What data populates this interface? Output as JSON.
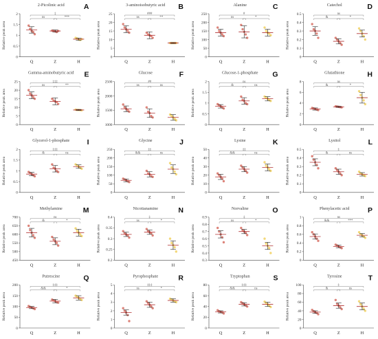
{
  "chart_data": [
    {
      "letter": "A",
      "title": "2-Picolinic acid",
      "type": "scatter",
      "ylabel": "Relative peak area",
      "categories": [
        "Q",
        "Z",
        "H"
      ],
      "ylim": [
        0,
        2
      ],
      "yticks": [
        0,
        0.5,
        1,
        1.5,
        2
      ],
      "mean": [
        1.25,
        1.2,
        0.82
      ],
      "sd": [
        0.15,
        0.05,
        0.05
      ],
      "points": [
        [
          1.45,
          1.3,
          1.2,
          1.15,
          1.05
        ],
        [
          1.22,
          1.2,
          1.18,
          1.15,
          1.2
        ],
        [
          0.88,
          0.85,
          0.8,
          0.78,
          0.82
        ]
      ],
      "color": "#d9776b",
      "sig_long": "‡",
      "sig_left": "ns",
      "sig_right": "***"
    },
    {
      "letter": "B",
      "title": "3-aminoisobutyric acid",
      "type": "scatter",
      "ylabel": "Relative peak area",
      "categories": [
        "Q",
        "Z",
        "H"
      ],
      "ylim": [
        0,
        25
      ],
      "yticks": [
        0,
        5,
        10,
        15,
        20,
        25
      ],
      "mean": [
        16,
        12.5,
        8
      ],
      "sd": [
        2,
        2,
        0.3
      ],
      "points": [
        [
          19,
          17,
          16,
          15,
          14
        ],
        [
          14,
          13,
          12.5,
          12,
          11
        ],
        [
          8,
          8,
          8,
          8,
          8
        ]
      ],
      "color": "#d9776b",
      "sig_long": "###",
      "sig_left": "ns",
      "sig_right": "**"
    },
    {
      "letter": "C",
      "title": "Alanine",
      "type": "scatter",
      "ylabel": "Relative peak area",
      "categories": [
        "Q",
        "Z",
        "H"
      ],
      "ylim": [
        0,
        250
      ],
      "yticks": [
        0,
        50,
        100,
        150,
        200,
        250
      ],
      "mean": [
        140,
        145,
        140
      ],
      "sd": [
        20,
        35,
        20
      ],
      "points": [
        [
          170,
          150,
          140,
          130,
          120
        ],
        [
          185,
          160,
          145,
          130,
          110
        ],
        [
          170,
          150,
          140,
          135,
          125
        ]
      ],
      "color": "#d9776b",
      "sig_long": "#",
      "sig_left": "ns",
      "sig_right": "*"
    },
    {
      "letter": "D",
      "title": "Catechol",
      "type": "scatter",
      "ylabel": "Relative peak area",
      "categories": [
        "Q",
        "Z",
        "H"
      ],
      "ylim": [
        0,
        0.5
      ],
      "yticks": [
        0,
        0.1,
        0.2,
        0.3,
        0.4,
        0.5
      ],
      "mean": [
        0.3,
        0.18,
        0.27
      ],
      "sd": [
        0.05,
        0.03,
        0.04
      ],
      "points": [
        [
          0.38,
          0.32,
          0.3,
          0.27,
          0.22
        ],
        [
          0.22,
          0.2,
          0.18,
          0.16,
          0.14
        ],
        [
          0.33,
          0.3,
          0.27,
          0.24,
          0.2
        ]
      ],
      "color": "#d9776b",
      "sig_long": "ns",
      "sig_left": "&",
      "sig_right": "*"
    },
    {
      "letter": "E",
      "title": "Gamma-aminobutyric acid",
      "type": "scatter",
      "ylabel": "Relative peak area",
      "categories": [
        "Q",
        "Z",
        "H"
      ],
      "ylim": [
        0,
        25
      ],
      "yticks": [
        0,
        5,
        10,
        15,
        20,
        25
      ],
      "mean": [
        17,
        13.5,
        8.5
      ],
      "sd": [
        2,
        2,
        0.3
      ],
      "points": [
        [
          20,
          18,
          17,
          16,
          15
        ],
        [
          15,
          14,
          13.5,
          13,
          12
        ],
        [
          8.7,
          8.5,
          8.5,
          8.4,
          8.3
        ]
      ],
      "color": "#d9776b",
      "sig_long": "‡‡‡",
      "sig_left": "ns",
      "sig_right": "**"
    },
    {
      "letter": "F",
      "title": "Glucose",
      "type": "scatter",
      "ylabel": "Relative peak area",
      "categories": [
        "Q",
        "Z",
        "H"
      ],
      "ylim": [
        1000,
        2500
      ],
      "yticks": [
        1000,
        1500,
        2000,
        2500
      ],
      "mean": [
        1550,
        1400,
        1250
      ],
      "sd": [
        100,
        150,
        100
      ],
      "points": [
        [
          1700,
          1600,
          1550,
          1500,
          1450
        ],
        [
          1600,
          1450,
          1400,
          1300,
          1250
        ],
        [
          1350,
          1300,
          1250,
          1200,
          1150
        ]
      ],
      "color": "#d9776b",
      "sig_long": "##",
      "sig_left": "ns",
      "sig_right": "ns"
    },
    {
      "letter": "G",
      "title": "Glucose-1-phosphate",
      "type": "scatter",
      "ylabel": "Relative peak area",
      "categories": [
        "Q",
        "Z",
        "H"
      ],
      "ylim": [
        0,
        2
      ],
      "yticks": [
        0,
        0.5,
        1,
        1.5,
        2
      ],
      "mean": [
        0.85,
        1.1,
        1.2
      ],
      "sd": [
        0.08,
        0.15,
        0.1
      ],
      "points": [
        [
          0.95,
          0.9,
          0.85,
          0.8,
          0.75
        ],
        [
          1.3,
          1.15,
          1.1,
          1.0,
          0.95
        ],
        [
          1.3,
          1.25,
          1.2,
          1.15,
          1.1
        ]
      ],
      "color": "#d9776b",
      "sig_long": "ns",
      "sig_left": "&",
      "sig_right": "ns"
    },
    {
      "letter": "H",
      "title": "Glutathione",
      "type": "scatter",
      "ylabel": "Relative peak area",
      "categories": [
        "Q",
        "Z",
        "H"
      ],
      "ylim": [
        0,
        8
      ],
      "yticks": [
        0,
        2,
        4,
        6,
        8
      ],
      "mean": [
        2.9,
        3.3,
        5
      ],
      "sd": [
        0.2,
        0.1,
        1
      ],
      "points": [
        [
          3.1,
          3.0,
          2.9,
          2.8,
          2.7
        ],
        [
          3.4,
          3.35,
          3.3,
          3.25,
          3.2
        ],
        [
          6.2,
          5.5,
          5.0,
          4.5,
          3.8
        ]
      ],
      "color": "#d9776b",
      "sig_long": "ns",
      "sig_left": "&",
      "sig_right": "*"
    },
    {
      "letter": "I",
      "title": "Glycerol-1-phosphate",
      "type": "scatter",
      "ylabel": "Relative peak area",
      "categories": [
        "Q",
        "Z",
        "H"
      ],
      "ylim": [
        0,
        2
      ],
      "yticks": [
        0,
        0.5,
        1,
        1.5,
        2
      ],
      "mean": [
        0.85,
        1.1,
        1.2
      ],
      "sd": [
        0.08,
        0.15,
        0.08
      ],
      "points": [
        [
          0.95,
          0.9,
          0.85,
          0.8,
          0.75
        ],
        [
          1.3,
          1.15,
          1.1,
          1.0,
          0.95
        ],
        [
          1.3,
          1.25,
          1.2,
          1.15,
          1.1
        ]
      ],
      "color": "#d9776b",
      "sig_long": "‡‡‡",
      "sig_left": "&",
      "sig_right": "ns"
    },
    {
      "letter": "J",
      "title": "Glycine",
      "type": "scatter",
      "ylabel": "Relative peak area",
      "categories": [
        "Q",
        "Z",
        "H"
      ],
      "ylim": [
        0,
        250
      ],
      "yticks": [
        0,
        50,
        100,
        150,
        200,
        250
      ],
      "mean": [
        70,
        105,
        135
      ],
      "sd": [
        8,
        15,
        25
      ],
      "points": [
        [
          80,
          75,
          70,
          65,
          60
        ],
        [
          125,
          110,
          105,
          95,
          90
        ],
        [
          170,
          145,
          135,
          120,
          105
        ]
      ],
      "color": "#d9776b",
      "sig_long": "‡‡",
      "sig_left": "&&",
      "sig_right": "ns"
    },
    {
      "letter": "K",
      "title": "Lysine",
      "type": "scatter",
      "ylabel": "Relative peak area",
      "categories": [
        "Q",
        "Z",
        "H"
      ],
      "ylim": [
        0,
        50
      ],
      "yticks": [
        0,
        10,
        20,
        30,
        40,
        50
      ],
      "mean": [
        18,
        27,
        29
      ],
      "sd": [
        3,
        3,
        4
      ],
      "points": [
        [
          22,
          20,
          18,
          16,
          13
        ],
        [
          31,
          29,
          27,
          25,
          23
        ],
        [
          35,
          31,
          29,
          27,
          25
        ]
      ],
      "color": "#d9776b",
      "sig_long": "‡‡",
      "sig_left": "&&",
      "sig_right": "ns"
    },
    {
      "letter": "L",
      "title": "Lysitol",
      "type": "scatter",
      "ylabel": "Relative peak area",
      "categories": [
        "Q",
        "Z",
        "H"
      ],
      "ylim": [
        0,
        0.5
      ],
      "yticks": [
        0,
        0.1,
        0.2,
        0.3,
        0.4,
        0.5
      ],
      "mean": [
        0.35,
        0.24,
        0.21
      ],
      "sd": [
        0.04,
        0.03,
        0.02
      ],
      "points": [
        [
          0.42,
          0.38,
          0.35,
          0.32,
          0.28
        ],
        [
          0.28,
          0.26,
          0.24,
          0.22,
          0.2
        ],
        [
          0.24,
          0.22,
          0.21,
          0.2,
          0.19
        ]
      ],
      "color": "#d9776b",
      "sig_long": "‡",
      "sig_left": "&",
      "sig_right": "ns"
    },
    {
      "letter": "M",
      "title": "Methylamine",
      "type": "scatter",
      "ylabel": "Relative peak area",
      "categories": [
        "Q",
        "Z",
        "H"
      ],
      "ylim": [
        450,
        700
      ],
      "yticks": [
        450,
        500,
        550,
        600,
        650,
        700
      ],
      "mean": [
        610,
        560,
        610
      ],
      "sd": [
        25,
        20,
        20
      ],
      "points": [
        [
          650,
          625,
          610,
          595,
          580
        ],
        [
          585,
          570,
          560,
          550,
          535
        ],
        [
          635,
          620,
          610,
          600,
          590
        ]
      ],
      "color": "#d9776b",
      "sig_long": "ns",
      "sig_left": "&",
      "sig_right": "*"
    },
    {
      "letter": "N",
      "title": "Nicotianamine",
      "type": "scatter",
      "ylabel": "Relative peak area",
      "categories": [
        "Q",
        "Z",
        "H"
      ],
      "ylim": [
        0.2,
        0.4
      ],
      "yticks": [
        0.2,
        0.25,
        0.3,
        0.35,
        0.4
      ],
      "mean": [
        0.32,
        0.33,
        0.27
      ],
      "sd": [
        0.01,
        0.01,
        0.02
      ],
      "points": [
        [
          0.335,
          0.325,
          0.32,
          0.315,
          0.305
        ],
        [
          0.345,
          0.335,
          0.33,
          0.325,
          0.315
        ],
        [
          0.3,
          0.28,
          0.27,
          0.26,
          0.24
        ]
      ],
      "color": "#d9776b",
      "sig_long": "‡",
      "sig_left": "ns",
      "sig_right": "*"
    },
    {
      "letter": "O",
      "title": "Norvaline",
      "type": "scatter",
      "ylabel": "Relative peak area",
      "categories": [
        "Q",
        "Z",
        "H"
      ],
      "ylim": [
        0.3,
        0.9
      ],
      "yticks": [
        0.3,
        0.4,
        0.5,
        0.6,
        0.7,
        0.8,
        0.9
      ],
      "mean": [
        0.66,
        0.7,
        0.5
      ],
      "sd": [
        0.05,
        0.03,
        0.05
      ],
      "points": [
        [
          0.75,
          0.7,
          0.66,
          0.62,
          0.55
        ],
        [
          0.75,
          0.72,
          0.7,
          0.68,
          0.65
        ],
        [
          0.6,
          0.53,
          0.5,
          0.47,
          0.4
        ]
      ],
      "color": "#d9776b",
      "sig_long": "‡",
      "sig_left": "ns",
      "sig_right": "*"
    },
    {
      "letter": "P",
      "title": "Phenylacetic acid",
      "type": "scatter",
      "ylabel": "Relative peak area",
      "categories": [
        "Q",
        "Z",
        "H"
      ],
      "ylim": [
        0,
        1
      ],
      "yticks": [
        0,
        0.2,
        0.4,
        0.6,
        0.8,
        1
      ],
      "mean": [
        0.55,
        0.32,
        0.58
      ],
      "sd": [
        0.06,
        0.03,
        0.04
      ],
      "points": [
        [
          0.65,
          0.6,
          0.55,
          0.5,
          0.45
        ],
        [
          0.36,
          0.34,
          0.32,
          0.3,
          0.28
        ],
        [
          0.65,
          0.6,
          0.58,
          0.55,
          0.52
        ]
      ],
      "color": "#d9776b",
      "sig_long": "ns",
      "sig_left": "&&",
      "sig_right": "***"
    },
    {
      "letter": "Q",
      "title": "Putrescine",
      "type": "scatter",
      "ylabel": "Relative peak area",
      "categories": [
        "Q",
        "Z",
        "H"
      ],
      "ylim": [
        0,
        200
      ],
      "yticks": [
        0,
        50,
        100,
        150,
        200
      ],
      "mean": [
        95,
        125,
        140
      ],
      "sd": [
        5,
        8,
        10
      ],
      "points": [
        [
          102,
          98,
          95,
          92,
          88
        ],
        [
          132,
          128,
          125,
          120,
          118
        ],
        [
          150,
          145,
          140,
          135,
          130
        ]
      ],
      "color": "#d9776b",
      "sig_long": "‡‡‡",
      "sig_left": "&&",
      "sig_right": "*"
    },
    {
      "letter": "R",
      "title": "Pyrophosphate",
      "type": "scatter",
      "ylabel": "Relative peak area",
      "categories": [
        "Q",
        "Z",
        "H"
      ],
      "ylim": [
        0,
        5
      ],
      "yticks": [
        0,
        1,
        2,
        3,
        4,
        5
      ],
      "mean": [
        1.8,
        2.7,
        3.2
      ],
      "sd": [
        0.3,
        0.3,
        0.2
      ],
      "points": [
        [
          2.3,
          2.0,
          1.8,
          1.5,
          0.8
        ],
        [
          3.1,
          2.9,
          2.7,
          2.5,
          2.3
        ],
        [
          3.4,
          3.3,
          3.2,
          3.1,
          3.0
        ]
      ],
      "color": "#d9776b",
      "sig_long": "‡‡‡",
      "sig_left": "ns",
      "sig_right": "*"
    },
    {
      "letter": "S",
      "title": "Tryptophan",
      "type": "scatter",
      "ylabel": "Relative peak area",
      "categories": [
        "Q",
        "Z",
        "H"
      ],
      "ylim": [
        0,
        80
      ],
      "yticks": [
        0,
        20,
        40,
        60,
        80
      ],
      "mean": [
        30,
        44,
        44
      ],
      "sd": [
        2,
        3,
        4
      ],
      "points": [
        [
          33,
          31,
          30,
          29,
          27
        ],
        [
          48,
          46,
          44,
          42,
          40
        ],
        [
          49,
          46,
          44,
          42,
          39
        ]
      ],
      "color": "#d9776b",
      "sig_long": "‡‡‡",
      "sig_left": "&&",
      "sig_right": "ns"
    },
    {
      "letter": "T",
      "title": "Tyrosine",
      "type": "scatter",
      "ylabel": "Relative peak area",
      "categories": [
        "Q",
        "Z",
        "H"
      ],
      "ylim": [
        0,
        100
      ],
      "yticks": [
        0,
        20,
        40,
        60,
        80,
        100
      ],
      "mean": [
        37,
        52,
        50
      ],
      "sd": [
        3,
        6,
        8
      ],
      "points": [
        [
          42,
          39,
          37,
          35,
          32
        ],
        [
          65,
          56,
          52,
          48,
          44
        ],
        [
          62,
          55,
          50,
          45,
          40
        ]
      ],
      "color": "#d9776b",
      "sig_long": "‡",
      "sig_left": "&",
      "sig_right": "ns"
    }
  ]
}
